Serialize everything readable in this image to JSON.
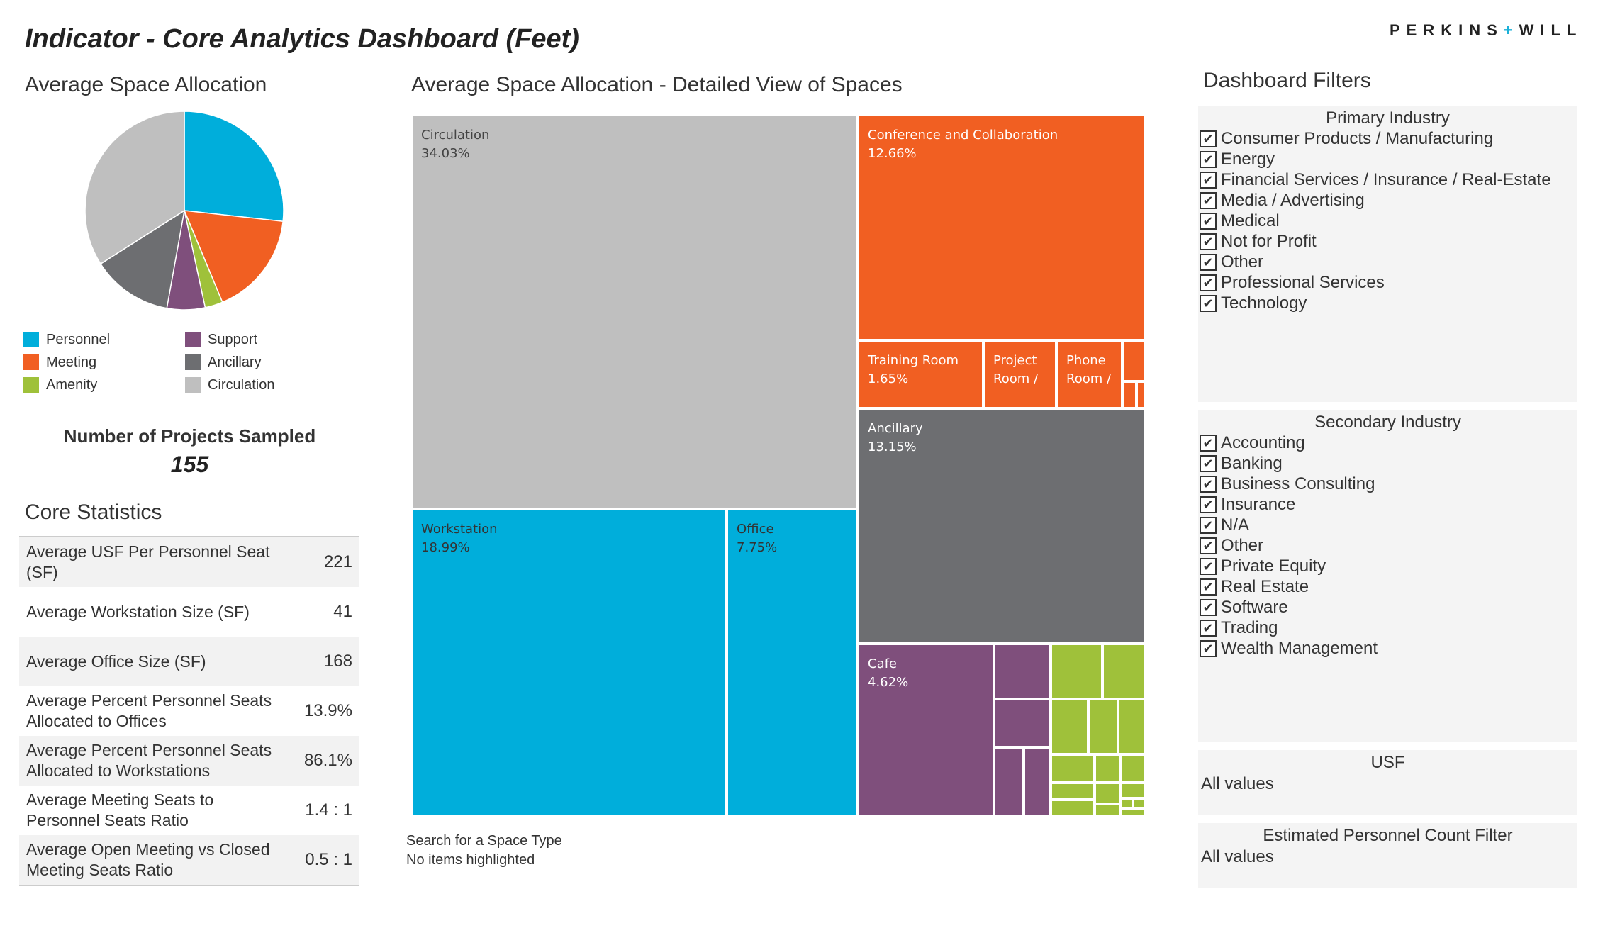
{
  "header": {
    "title": "Indicator - Core Analytics Dashboard (Feet)",
    "logo_left": "PERKINS",
    "logo_plus": "+",
    "logo_right": "WILL"
  },
  "pie_section": {
    "title": "Average Space Allocation",
    "legend": [
      {
        "label": "Personnel",
        "color": "#00aedb"
      },
      {
        "label": "Support",
        "color": "#7f4f7c"
      },
      {
        "label": "Meeting",
        "color": "#f15f22"
      },
      {
        "label": "Ancillary",
        "color": "#6d6e71"
      },
      {
        "label": "Amenity",
        "color": "#9fc13a"
      },
      {
        "label": "Circulation",
        "color": "#bfbfbf"
      }
    ],
    "projects_label": "Number of Projects Sampled",
    "projects_count": "155"
  },
  "stats_section": {
    "title": "Core Statistics",
    "rows": [
      {
        "label": "Average USF Per Personnel Seat (SF)",
        "value": "221"
      },
      {
        "label": "Average Workstation Size (SF)",
        "value": "41"
      },
      {
        "label": "Average Office Size (SF)",
        "value": "168"
      },
      {
        "label": "Average Percent Personnel Seats Allocated to Offices",
        "value": "13.9%"
      },
      {
        "label": "Average Percent Personnel Seats Allocated to Workstations",
        "value": "86.1%"
      },
      {
        "label": "Average Meeting Seats to Personnel Seats Ratio",
        "value": "1.4 : 1"
      },
      {
        "label": "Average Open Meeting vs Closed Meeting Seats Ratio",
        "value": "0.5 : 1"
      }
    ]
  },
  "treemap_section": {
    "title": "Average Space Allocation - Detailed View of Spaces",
    "search_label": "Search for a Space Type",
    "search_status": "No items highlighted"
  },
  "filters": {
    "title": "Dashboard Filters",
    "primary": {
      "title": "Primary Industry",
      "items": [
        "Consumer Products / Manufacturing",
        "Energy",
        "Financial Services / Insurance / Real-Estate",
        "Media / Advertising",
        "Medical",
        "Not for Profit",
        "Other",
        "Professional Services",
        "Technology"
      ]
    },
    "secondary": {
      "title": "Secondary Industry",
      "items": [
        "Accounting",
        "Banking",
        "Business Consulting",
        "Insurance",
        "N/A",
        "Other",
        "Private Equity",
        "Real Estate",
        "Software",
        "Trading",
        "Wealth Management"
      ]
    },
    "usf": {
      "title": "USF",
      "value": "All values"
    },
    "personnel": {
      "title": "Estimated Personnel Count Filter",
      "value": "All values"
    },
    "check_mark": "✔"
  },
  "chart_data": [
    {
      "type": "pie",
      "title": "Average Space Allocation",
      "slices": [
        {
          "label": "Personnel",
          "value": 26.74,
          "color": "#00aedb"
        },
        {
          "label": "Meeting",
          "value": 17.0,
          "color": "#f15f22"
        },
        {
          "label": "Amenity",
          "value": 2.9,
          "color": "#9fc13a"
        },
        {
          "label": "Support",
          "value": 6.2,
          "color": "#7f4f7c"
        },
        {
          "label": "Ancillary",
          "value": 13.15,
          "color": "#6d6e71"
        },
        {
          "label": "Circulation",
          "value": 34.03,
          "color": "#bfbfbf"
        }
      ]
    },
    {
      "type": "treemap",
      "title": "Average Space Allocation - Detailed View of Spaces",
      "tiles": [
        {
          "label": "Circulation",
          "value": "34.03%",
          "color": "#bfbfbf",
          "text_color": "#444444"
        },
        {
          "label": "Workstation",
          "value": "18.99%",
          "color": "#00aedb",
          "text_color": "#333333"
        },
        {
          "label": "Office",
          "value": "7.75%",
          "color": "#00aedb",
          "text_color": "#333333"
        },
        {
          "label": "Conference and Collaboration",
          "value": "12.66%",
          "color": "#f15f22",
          "text_color": "#ffffff"
        },
        {
          "label": "Training Room",
          "value": "1.65%",
          "color": "#f15f22",
          "text_color": "#ffffff"
        },
        {
          "label": "Project Room /",
          "value": "",
          "color": "#f15f22",
          "text_color": "#ffffff"
        },
        {
          "label": "Phone Room /",
          "value": "",
          "color": "#f15f22",
          "text_color": "#ffffff"
        },
        {
          "label": "Ancillary",
          "value": "13.15%",
          "color": "#6d6e71",
          "text_color": "#ffffff"
        },
        {
          "label": "Cafe",
          "value": "4.62%",
          "color": "#7f4f7c",
          "text_color": "#ffffff"
        }
      ]
    }
  ]
}
